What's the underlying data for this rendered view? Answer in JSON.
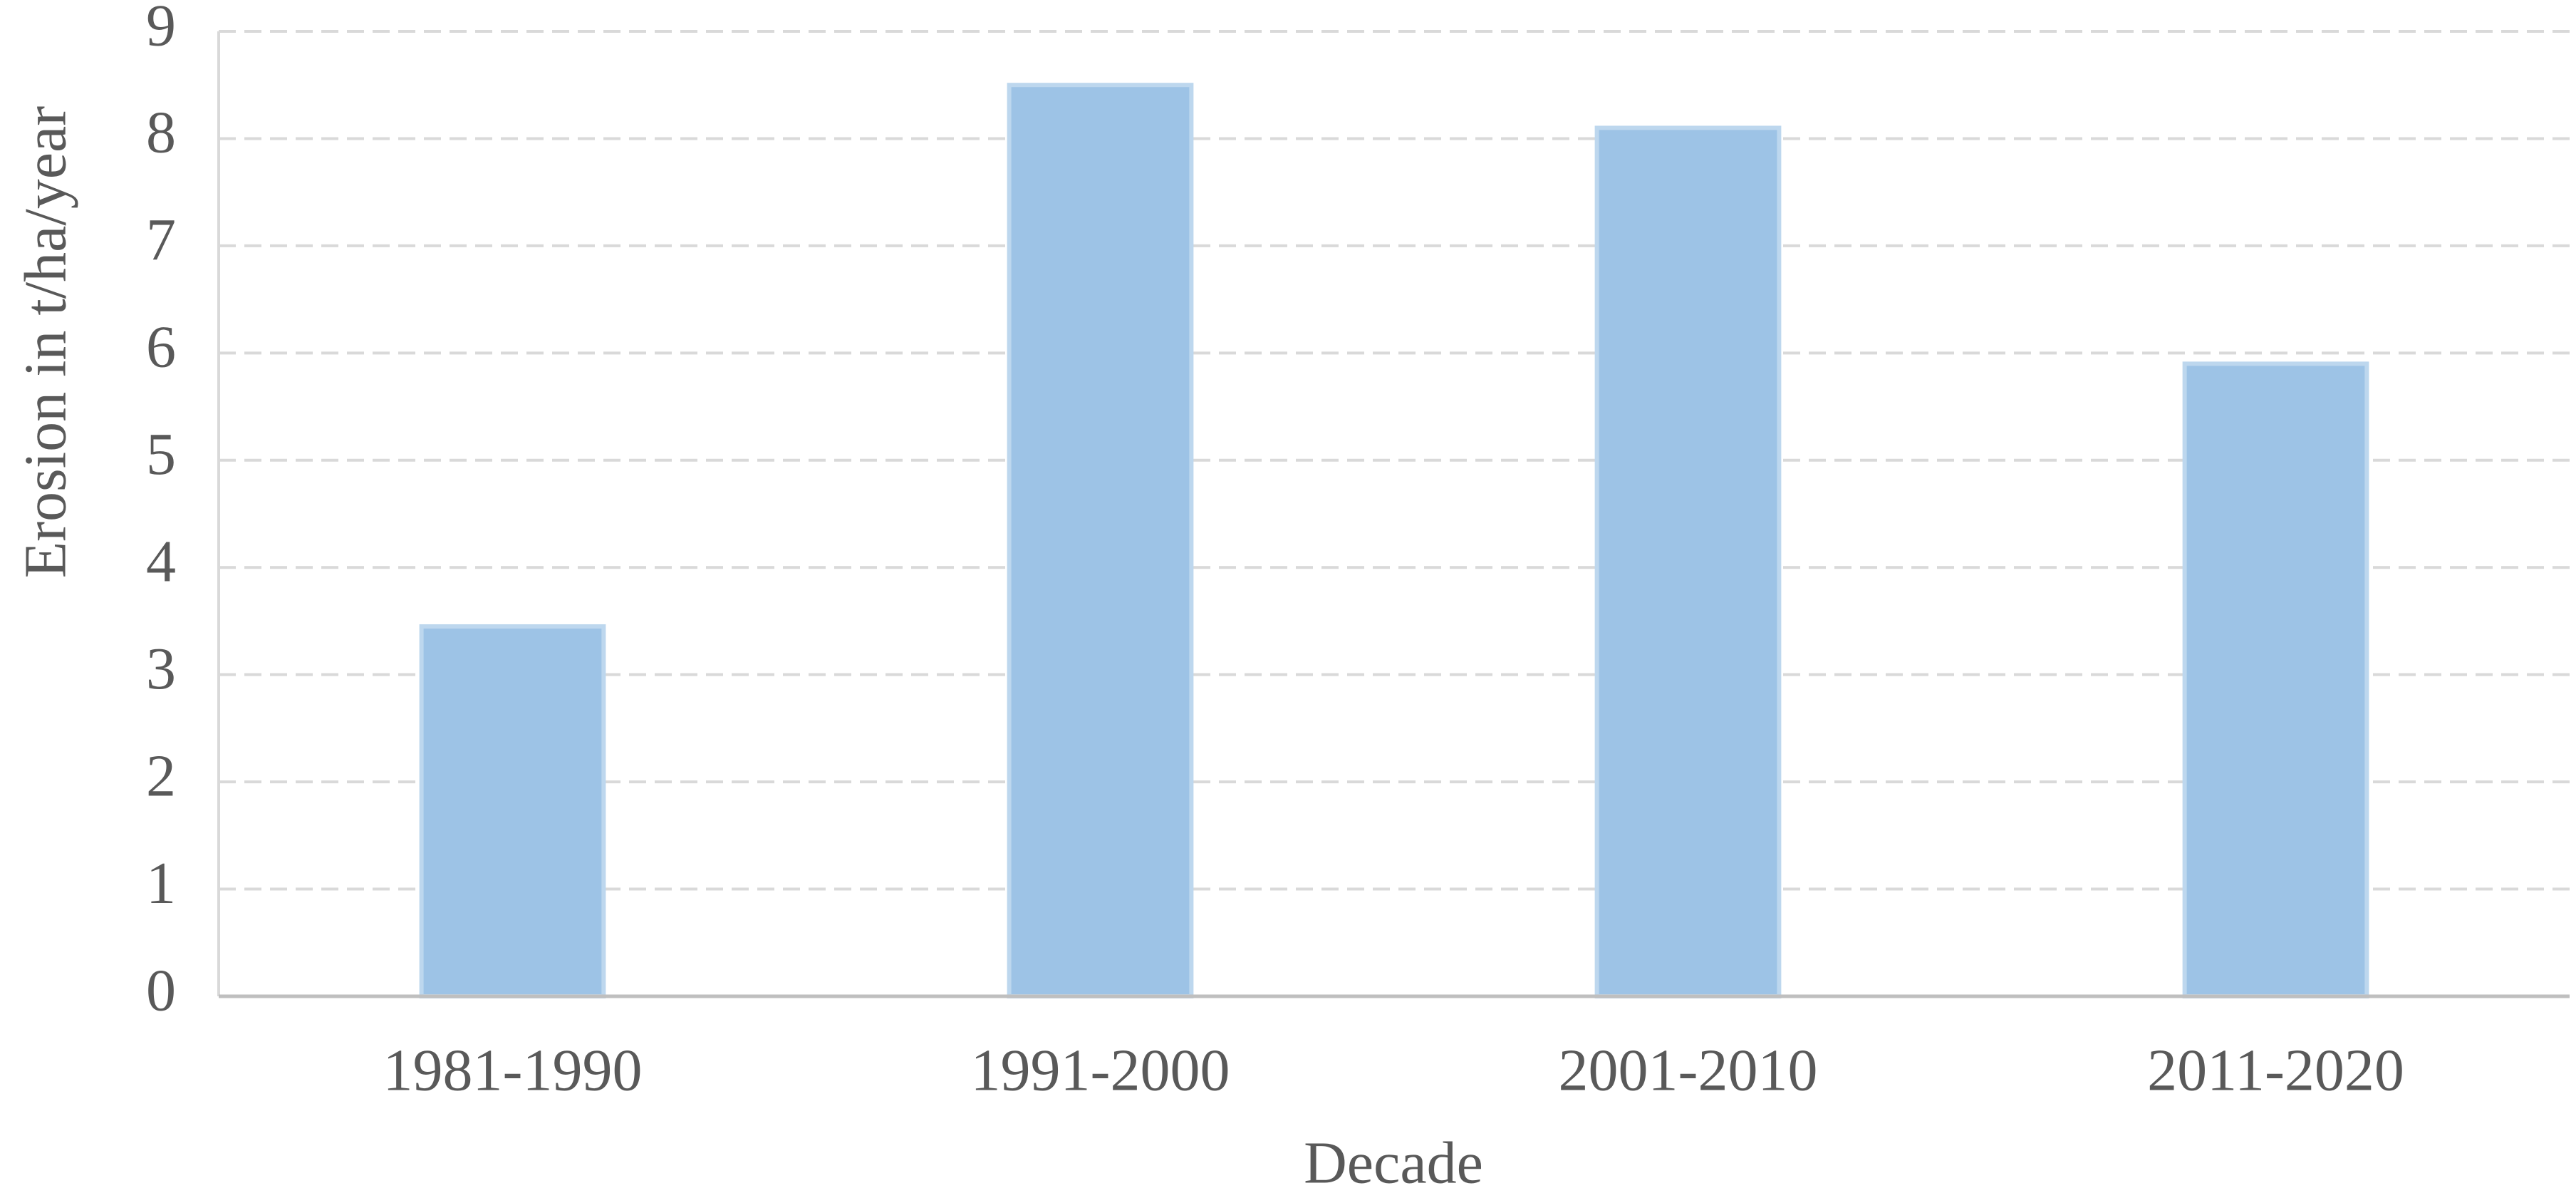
{
  "chart_data": {
    "type": "bar",
    "x_label": "Decade",
    "y_label": "Erosion in t/ha/year",
    "categories": [
      "1981-1990",
      "1991-2000",
      "2001-2010",
      "2011-2020"
    ],
    "values": [
      3.45,
      8.5,
      8.1,
      5.9
    ],
    "color": "#9dc3e6",
    "ylim": [
      0,
      9
    ],
    "yticks": [
      0,
      1,
      2,
      3,
      4,
      5,
      6,
      7,
      8,
      9
    ],
    "grid": true
  }
}
